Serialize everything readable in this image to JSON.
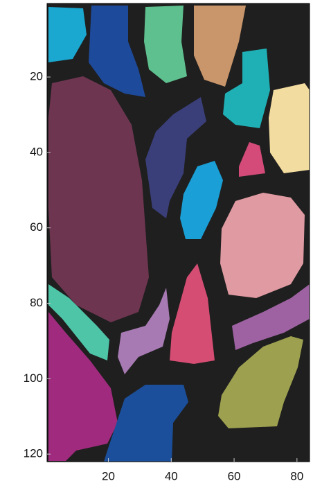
{
  "chart_data": {
    "type": "image",
    "xlim": [
      0.5,
      84
    ],
    "ylim": [
      0.5,
      122
    ],
    "ydir": "reverse",
    "xticks": [
      20,
      40,
      60,
      80
    ],
    "yticks": [
      20,
      40,
      60,
      80,
      100,
      120
    ]
  }
}
